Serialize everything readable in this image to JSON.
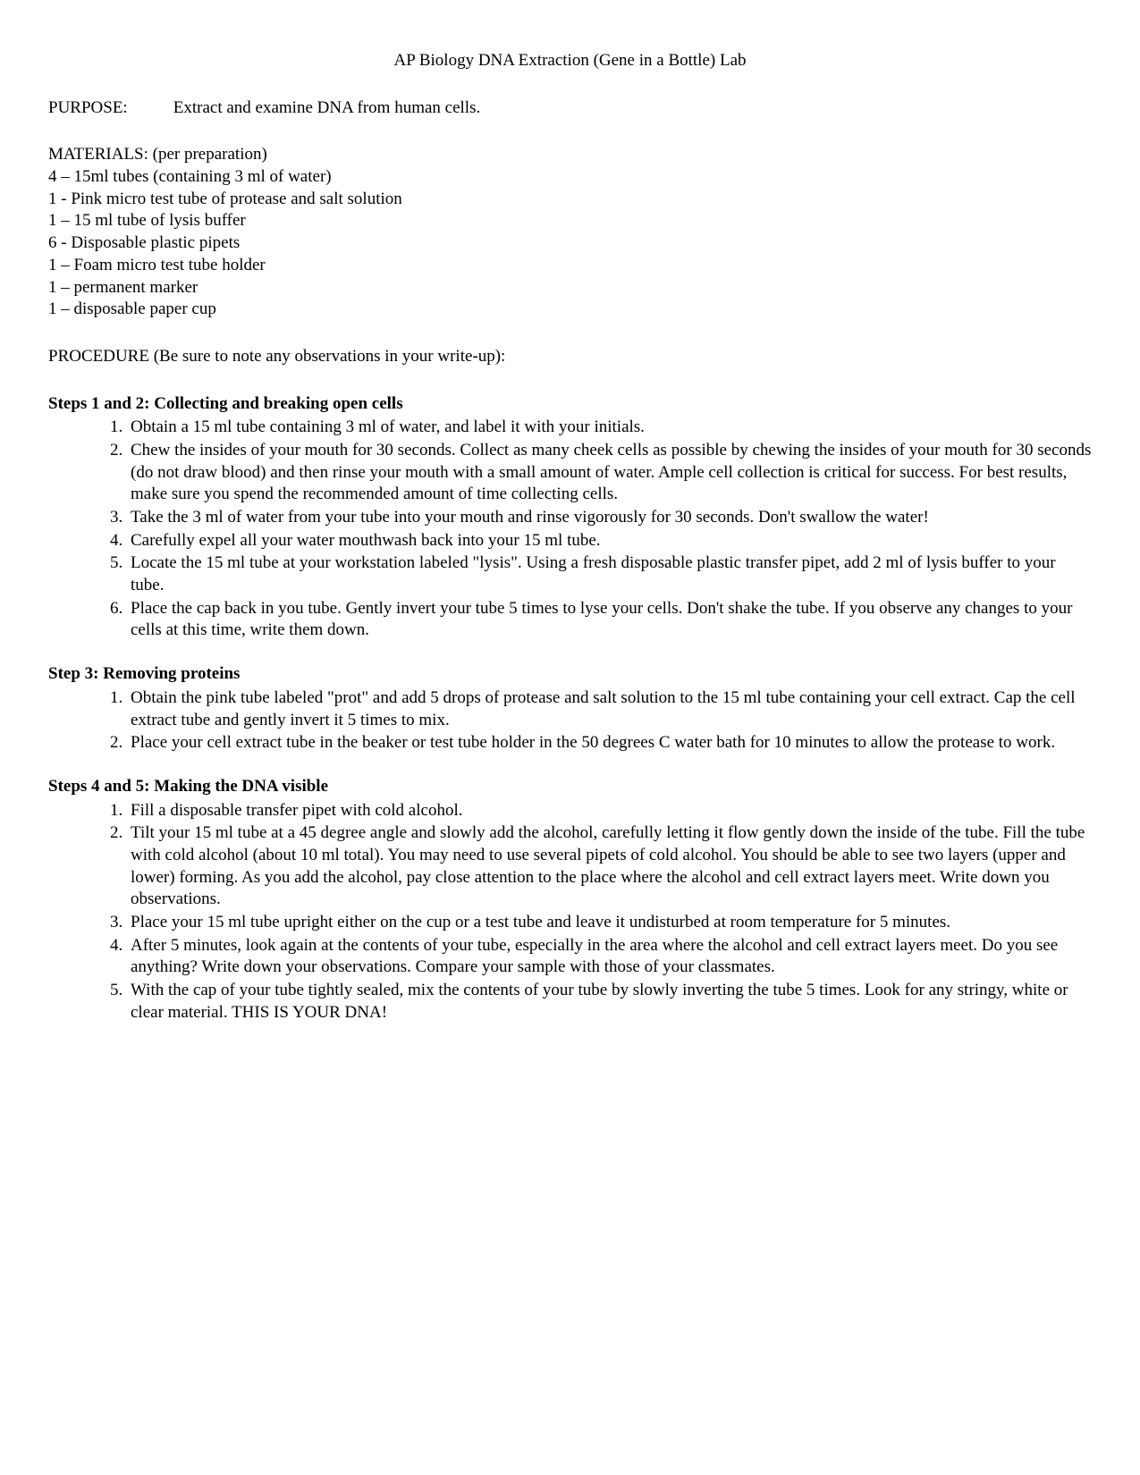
{
  "title": "AP Biology DNA Extraction (Gene in a Bottle) Lab",
  "purpose": {
    "label": "PURPOSE:",
    "text": "Extract and examine DNA from human cells."
  },
  "materials": {
    "header": "MATERIALS:  (per preparation)",
    "items": [
      "4 – 15ml tubes (containing 3 ml of water)",
      "1 - Pink micro test tube of  protease and salt solution",
      "1 – 15 ml tube of lysis buffer",
      "6 - Disposable plastic pipets",
      "1 – Foam micro test tube holder",
      "1 – permanent marker",
      "1 – disposable paper cup"
    ]
  },
  "procedure_header": "PROCEDURE (Be sure to note any observations in your write-up):",
  "sections": [
    {
      "heading": "Steps 1 and 2: Collecting and breaking open cells",
      "steps": [
        "Obtain a 15 ml tube containing 3 ml of water, and label it with your initials.",
        "Chew the insides of your mouth for 30 seconds. Collect as many cheek cells as possible by chewing the insides of your mouth for 30 seconds (do not draw blood) and then rinse your mouth with a small amount of water.  Ample cell collection is critical for success.  For best results, make sure you spend the recommended amount of time collecting cells.",
        "Take the 3 ml of water from your tube into your mouth and rinse vigorously for 30 seconds.  Don't swallow the water!",
        "Carefully expel all your water mouthwash back into your 15 ml tube.",
        "Locate the 15 ml tube at your workstation labeled \"lysis\".  Using a fresh disposable plastic transfer pipet, add 2 ml of lysis buffer to your tube.",
        "Place the cap back in you tube.  Gently invert your tube 5 times to lyse your cells.  Don't shake the tube.  If you observe any changes to your cells at this time, write them down."
      ]
    },
    {
      "heading": "Step 3: Removing proteins",
      "steps": [
        "Obtain the pink tube labeled \"prot\" and add 5 drops of protease and salt solution to the 15 ml tube containing your cell extract.  Cap the cell extract tube and gently invert it 5 times to mix.",
        "Place your cell extract tube in the beaker or test tube holder in the 50 degrees C water bath for 10 minutes to allow the protease to work."
      ]
    },
    {
      "heading": "Steps 4 and 5: Making the DNA visible",
      "steps": [
        "Fill a disposable transfer pipet with cold alcohol.",
        "Tilt your 15 ml tube at a 45 degree angle and slowly add the alcohol, carefully letting it flow gently down the inside of the tube.  Fill the tube with cold alcohol (about 10 ml total).  You may need to use several pipets of cold alcohol.  You should be able to see two layers (upper and lower) forming.  As you add the alcohol, pay close attention to the place where the alcohol and cell extract layers meet.  Write down you observations.",
        "Place your 15 ml tube upright either on the cup or a test tube and leave it undisturbed at room temperature for 5 minutes.",
        "After 5 minutes, look again at the contents of your tube, especially in the area where the alcohol and cell extract layers meet.  Do you see anything?  Write down your observations.  Compare your sample with those of your classmates.",
        "With the cap of your tube tightly sealed, mix the contents of your tube by slowly inverting the tube 5 times.  Look for any stringy, white or clear material.  THIS IS YOUR DNA!"
      ]
    }
  ]
}
